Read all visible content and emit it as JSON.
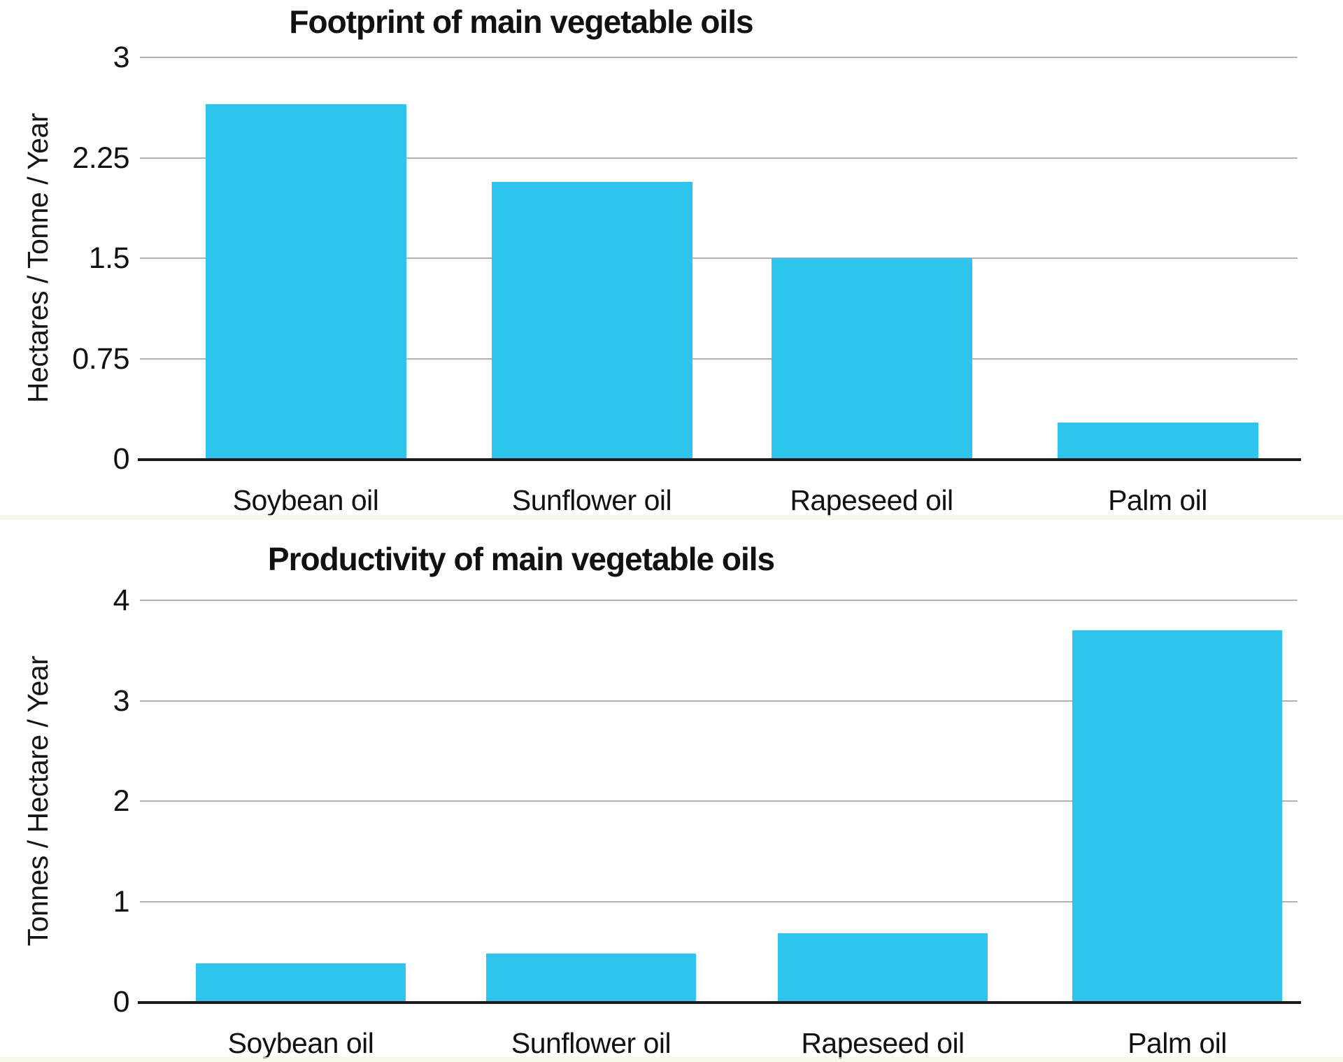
{
  "colors": {
    "bar_fill": "#2fc4ee",
    "grid_line": "#b1b1b1",
    "axis_line": "#1a1a1a",
    "text": "#111111",
    "background": "#ffffff"
  },
  "chart_data": [
    {
      "type": "bar",
      "title": "Footprint of main vegetable oils",
      "ylabel": "Hectares / Tonne / Year",
      "xlabel": "",
      "categories": [
        "Soybean oil",
        "Sunflower oil",
        "Rapeseed oil",
        "Palm oil"
      ],
      "values": [
        2.65,
        2.07,
        1.5,
        0.27
      ],
      "y_ticks": [
        3,
        2.25,
        1.5,
        0.75,
        0
      ],
      "ylim": [
        0,
        3
      ],
      "grid": true,
      "legend": "none",
      "bar_color": "#2fc4ee"
    },
    {
      "type": "bar",
      "title": "Productivity of main vegetable oils",
      "ylabel": "Tonnes / Hectare / Year",
      "xlabel": "",
      "categories": [
        "Soybean oil",
        "Sunflower oil",
        "Rapeseed oil",
        "Palm oil"
      ],
      "values": [
        0.38,
        0.48,
        0.68,
        3.7
      ],
      "y_ticks": [
        4,
        3,
        2,
        1,
        0
      ],
      "ylim": [
        0,
        4
      ],
      "grid": true,
      "legend": "none",
      "bar_color": "#2fc4ee"
    }
  ]
}
